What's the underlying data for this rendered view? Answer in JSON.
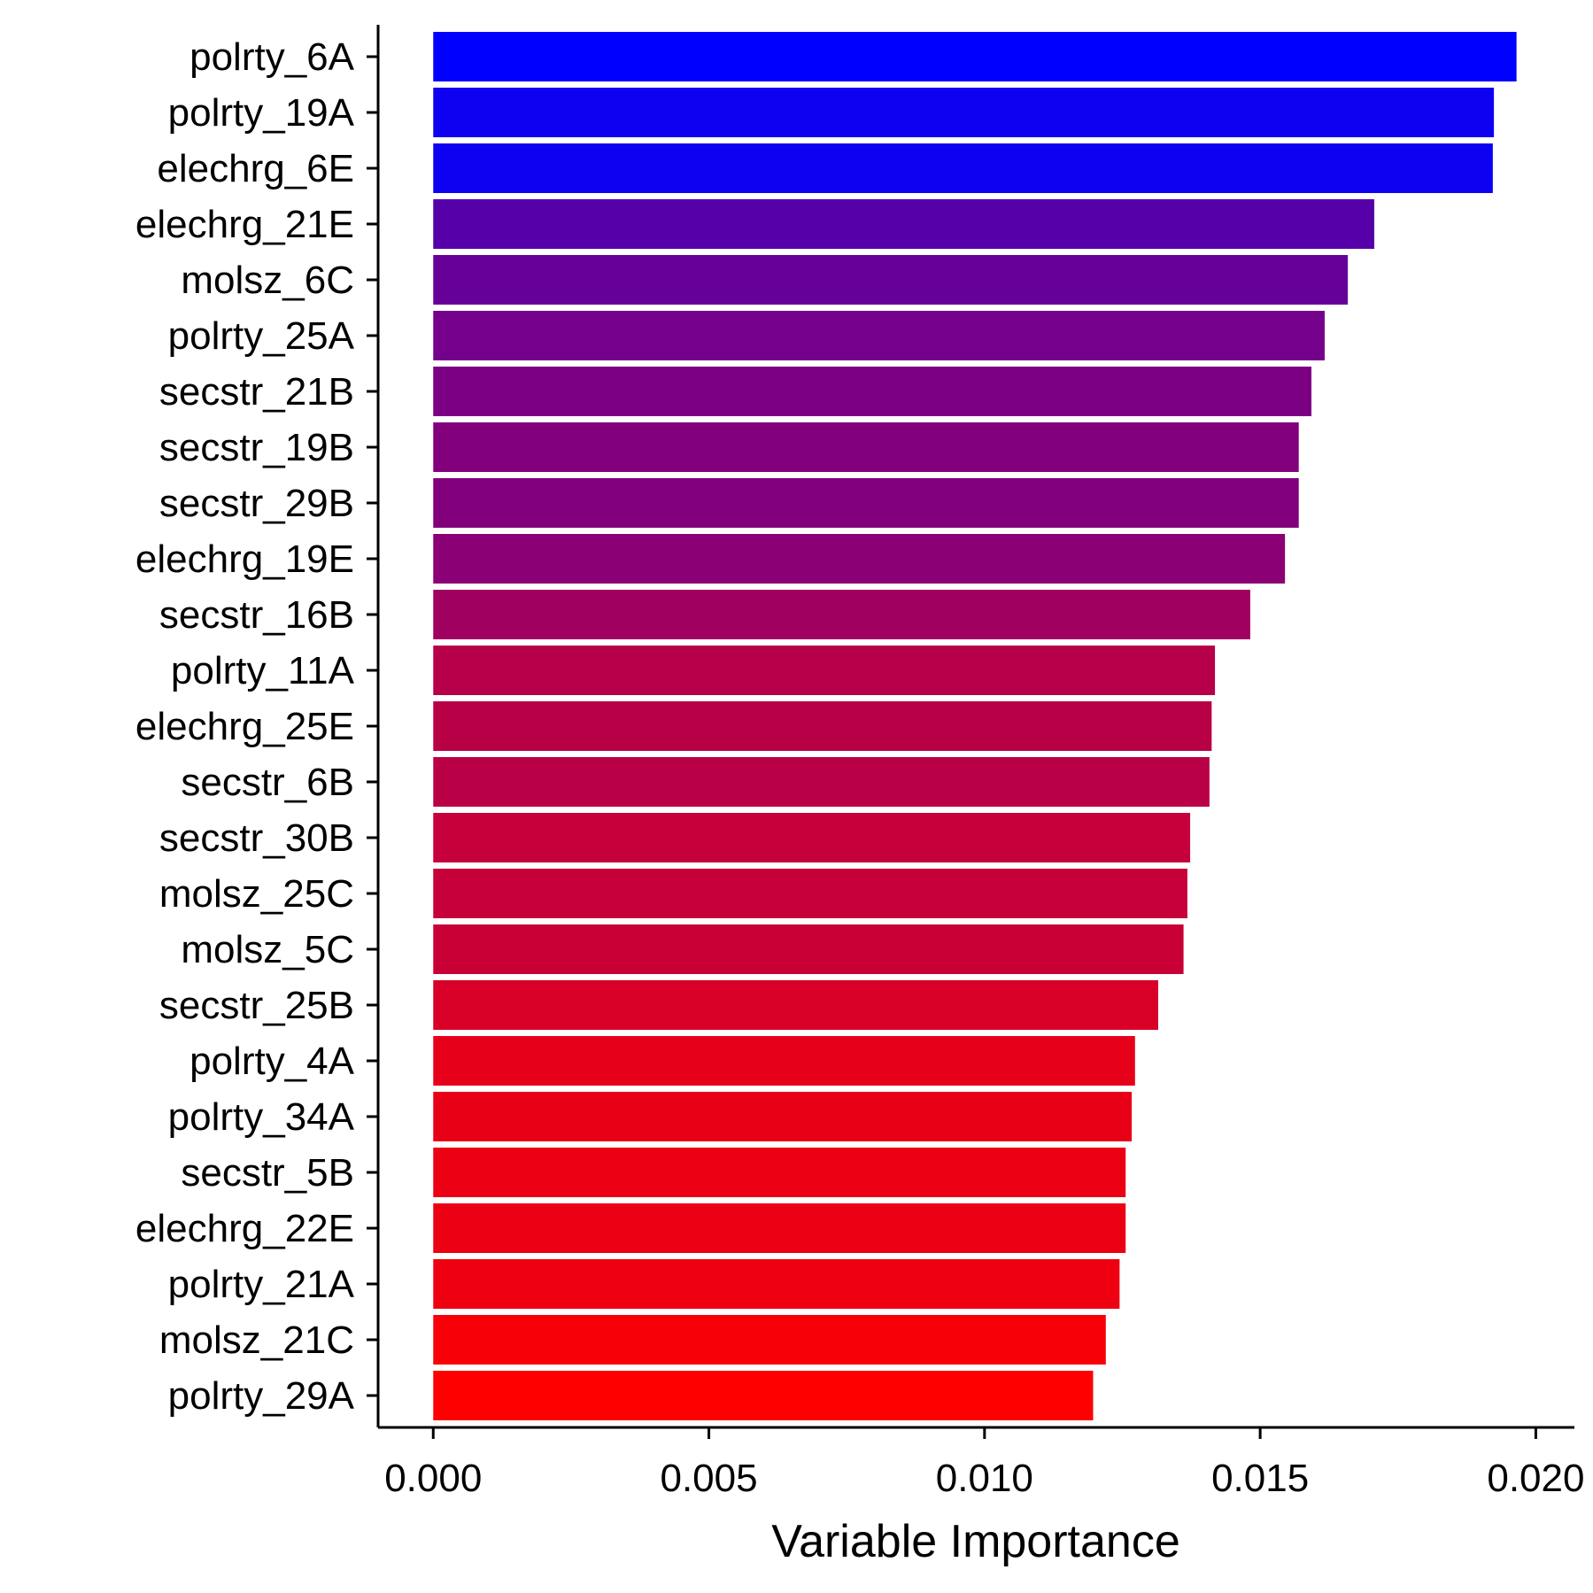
{
  "chart_data": {
    "type": "bar",
    "orientation": "horizontal",
    "title": "",
    "xlabel": "Variable Importance",
    "ylabel": "",
    "xlim": [
      -0.001,
      0.0207
    ],
    "xticks": [
      0.0,
      0.005,
      0.01,
      0.015,
      0.02
    ],
    "xtick_labels": [
      "0.000",
      "0.005",
      "0.010",
      "0.015",
      "0.020"
    ],
    "grid": false,
    "legend": "none",
    "color_scale": {
      "low": "#ff0000",
      "high": "#0000ff"
    },
    "categories": [
      "polrty_6A",
      "polrty_19A",
      "elechrg_6E",
      "elechrg_21E",
      "molsz_6C",
      "polrty_25A",
      "secstr_21B",
      "secstr_19B",
      "secstr_29B",
      "elechrg_19E",
      "secstr_16B",
      "polrty_11A",
      "elechrg_25E",
      "secstr_6B",
      "secstr_30B",
      "molsz_25C",
      "molsz_5C",
      "secstr_25B",
      "polrty_4A",
      "polrty_34A",
      "secstr_5B",
      "elechrg_22E",
      "polrty_21A",
      "molsz_21C",
      "polrty_29A"
    ],
    "values": [
      0.01965,
      0.01924,
      0.01922,
      0.01707,
      0.01659,
      0.01617,
      0.01593,
      0.0157,
      0.0157,
      0.01545,
      0.01482,
      0.01418,
      0.01412,
      0.01408,
      0.01373,
      0.01368,
      0.01361,
      0.01315,
      0.01273,
      0.01267,
      0.01256,
      0.01256,
      0.01245,
      0.0122,
      0.01197
    ]
  }
}
